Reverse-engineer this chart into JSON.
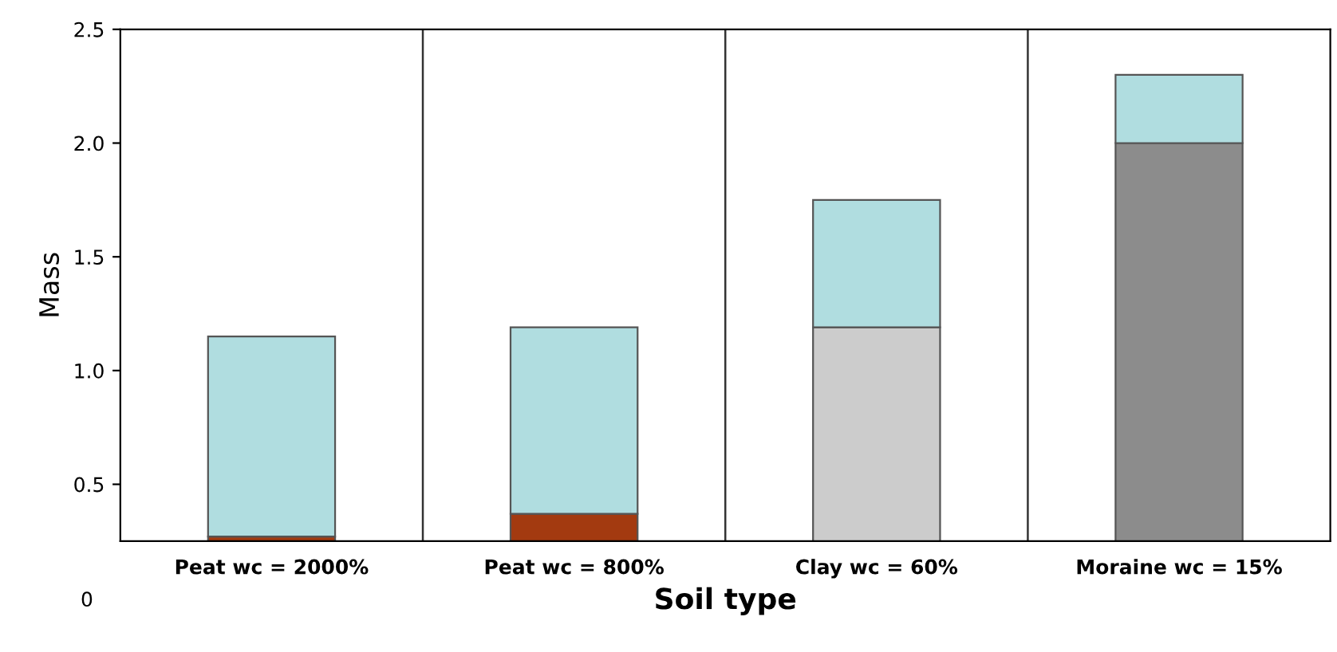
{
  "chart_data": {
    "type": "bar",
    "stacked": true,
    "xlabel": "Soil type",
    "ylabel": "Mass",
    "categories": [
      "Peat wc = 2000%",
      "Peat wc = 800%",
      "Clay wc = 60%",
      "Moraine wc = 15%"
    ],
    "series": [
      {
        "colors": [
          "#a33a10",
          "#a33a10",
          "#cccccc",
          "#8c8c8c"
        ],
        "values": [
          0.27,
          0.37,
          1.19,
          2.0
        ]
      },
      {
        "color": "#b0dde0",
        "values": [
          0.88,
          0.82,
          0.56,
          0.3
        ]
      }
    ],
    "ylim": [
      0.25,
      2.5
    ],
    "yticks": [
      0.5,
      {
        "value": 1,
        "label": "1.0"
      },
      1.5,
      {
        "value": 2,
        "label": "2.0"
      },
      2.5
    ],
    "annotations": [
      "0"
    ],
    "grid": "x"
  }
}
